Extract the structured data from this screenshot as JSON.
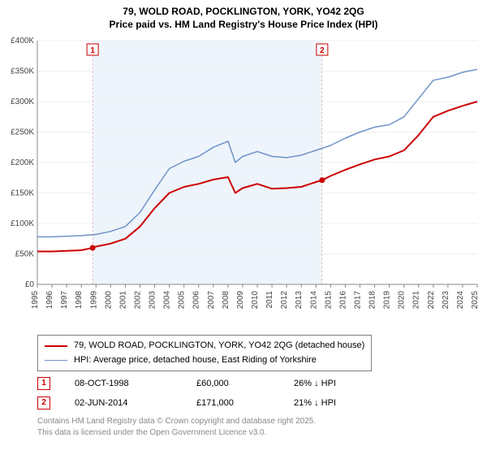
{
  "title_line1": "79, WOLD ROAD, POCKLINGTON, YORK, YO42 2QG",
  "title_line2": "Price paid vs. HM Land Registry's House Price Index (HPI)",
  "chart": {
    "type": "line",
    "background_color": "#ffffff",
    "plot_band_color": "#eef4fb",
    "grid_color": "#efefef",
    "axis_font_size": 10,
    "axis_color": "#444444",
    "x": {
      "min": 1995,
      "max": 2025,
      "ticks": [
        1995,
        1996,
        1997,
        1998,
        1999,
        2000,
        2001,
        2002,
        2003,
        2004,
        2005,
        2006,
        2007,
        2008,
        2009,
        2010,
        2011,
        2012,
        2013,
        2014,
        2015,
        2016,
        2017,
        2018,
        2019,
        2020,
        2021,
        2022,
        2023,
        2024,
        2025
      ]
    },
    "y": {
      "min": 0,
      "max": 400000,
      "ticks": [
        0,
        50000,
        100000,
        150000,
        200000,
        250000,
        300000,
        350000,
        400000
      ],
      "tick_labels": [
        "£0",
        "£50K",
        "£100K",
        "£150K",
        "£200K",
        "£250K",
        "£300K",
        "£350K",
        "£400K"
      ]
    },
    "plot_band": {
      "from": 1998.77,
      "to": 2014.42
    },
    "series": [
      {
        "name": "property",
        "label": "79, WOLD ROAD, POCKLINGTON, YORK, YO42 2QG (detached house)",
        "color": "#cc0000",
        "line_width": 2,
        "data": [
          [
            1995,
            54000
          ],
          [
            1996,
            54000
          ],
          [
            1997,
            55000
          ],
          [
            1998,
            56000
          ],
          [
            1998.77,
            60000
          ],
          [
            1999,
            62000
          ],
          [
            2000,
            67000
          ],
          [
            2001,
            75000
          ],
          [
            2002,
            95000
          ],
          [
            2003,
            125000
          ],
          [
            2004,
            150000
          ],
          [
            2005,
            160000
          ],
          [
            2006,
            165000
          ],
          [
            2007,
            172000
          ],
          [
            2008,
            176000
          ],
          [
            2008.5,
            150000
          ],
          [
            2009,
            158000
          ],
          [
            2010,
            165000
          ],
          [
            2011,
            157000
          ],
          [
            2012,
            158000
          ],
          [
            2013,
            160000
          ],
          [
            2014,
            168000
          ],
          [
            2014.42,
            171000
          ],
          [
            2015,
            178000
          ],
          [
            2016,
            188000
          ],
          [
            2017,
            197000
          ],
          [
            2018,
            205000
          ],
          [
            2019,
            210000
          ],
          [
            2020,
            220000
          ],
          [
            2021,
            245000
          ],
          [
            2022,
            275000
          ],
          [
            2023,
            285000
          ],
          [
            2024,
            293000
          ],
          [
            2025,
            300000
          ]
        ]
      },
      {
        "name": "hpi",
        "label": "HPI: Average price, detached house, East Riding of Yorkshire",
        "color": "#6f93c8",
        "line_width": 1.5,
        "data": [
          [
            1995,
            78000
          ],
          [
            1996,
            78000
          ],
          [
            1997,
            79000
          ],
          [
            1998,
            80000
          ],
          [
            1999,
            82000
          ],
          [
            2000,
            87000
          ],
          [
            2001,
            95000
          ],
          [
            2002,
            118000
          ],
          [
            2003,
            155000
          ],
          [
            2004,
            190000
          ],
          [
            2005,
            202000
          ],
          [
            2006,
            210000
          ],
          [
            2007,
            225000
          ],
          [
            2008,
            235000
          ],
          [
            2008.5,
            200000
          ],
          [
            2009,
            210000
          ],
          [
            2010,
            218000
          ],
          [
            2011,
            210000
          ],
          [
            2012,
            208000
          ],
          [
            2013,
            212000
          ],
          [
            2014,
            220000
          ],
          [
            2015,
            228000
          ],
          [
            2016,
            240000
          ],
          [
            2017,
            250000
          ],
          [
            2018,
            258000
          ],
          [
            2019,
            262000
          ],
          [
            2020,
            275000
          ],
          [
            2021,
            305000
          ],
          [
            2022,
            335000
          ],
          [
            2023,
            340000
          ],
          [
            2024,
            348000
          ],
          [
            2025,
            353000
          ]
        ]
      }
    ],
    "markers": [
      {
        "n": "1",
        "x": 1998.77,
        "y": 60000,
        "color": "#cc0000"
      },
      {
        "n": "2",
        "x": 2014.42,
        "y": 171000,
        "color": "#cc0000"
      }
    ]
  },
  "marker_rows": [
    {
      "n": "1",
      "date": "08-OCT-1998",
      "price": "£60,000",
      "diff": "26% ↓ HPI"
    },
    {
      "n": "2",
      "date": "02-JUN-2014",
      "price": "£171,000",
      "diff": "21% ↓ HPI"
    }
  ],
  "footer_line1": "Contains HM Land Registry data © Crown copyright and database right 2025.",
  "footer_line2": "This data is licensed under the Open Government Licence v3.0."
}
